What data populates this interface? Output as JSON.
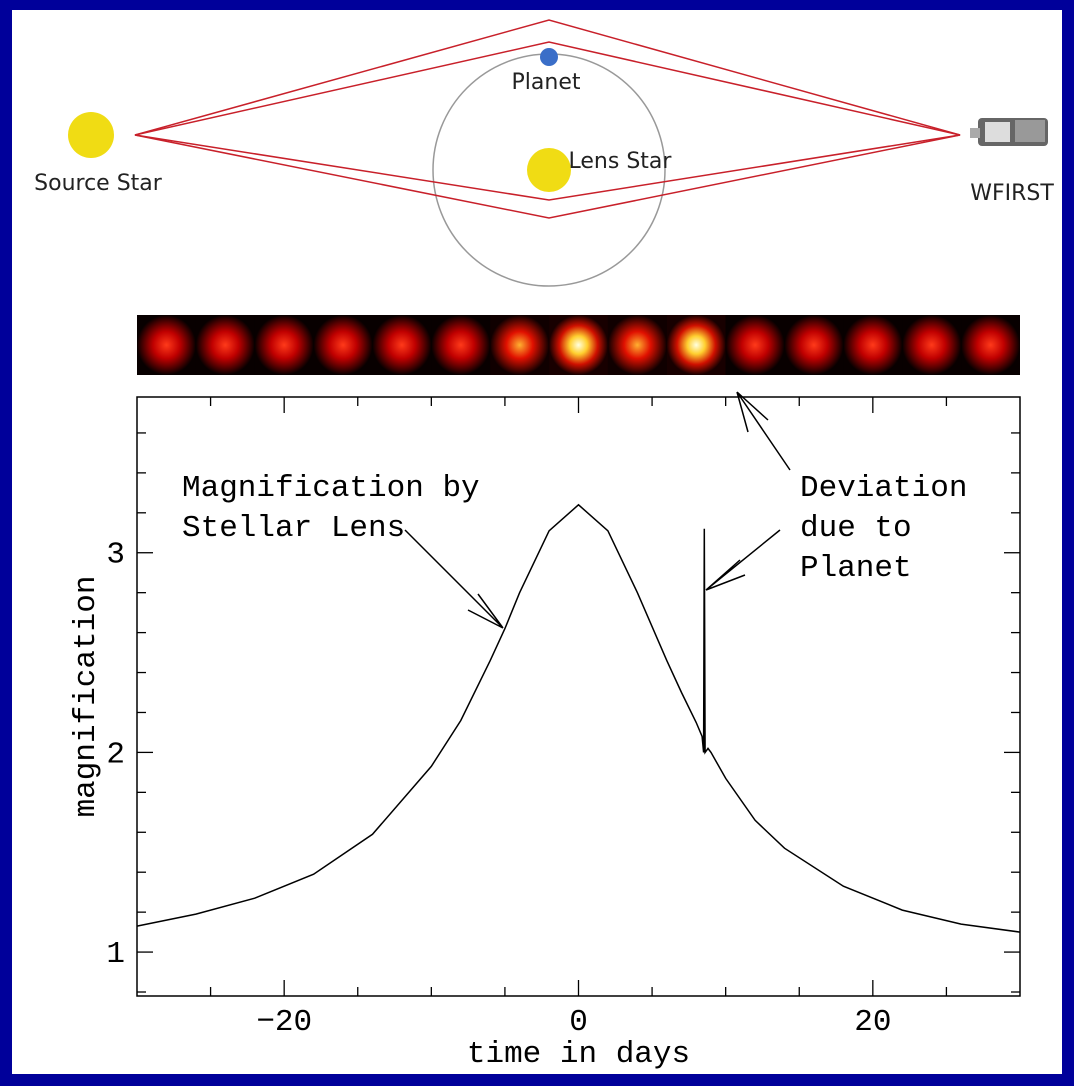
{
  "diagram": {
    "source_label": "Source Star",
    "lens_label": "Lens Star",
    "planet_label": "Planet",
    "telescope_label": "WFIRST"
  },
  "chart_data": {
    "type": "line",
    "xlabel": "time in days",
    "ylabel": "magnification",
    "annotations": [
      [
        "Magnification by",
        "Stellar Lens"
      ],
      [
        "Deviation",
        "due to",
        "Planet"
      ]
    ],
    "x": [
      -30,
      -26,
      -22,
      -18,
      -14,
      -10,
      -8,
      -6,
      -5,
      -4,
      -2,
      0,
      2,
      4,
      6,
      7,
      8,
      8.4,
      8.5,
      8.55,
      8.6,
      8.8,
      9,
      10,
      12,
      14,
      18,
      22,
      26,
      30
    ],
    "values": [
      1.13,
      1.19,
      1.27,
      1.39,
      1.59,
      1.93,
      2.16,
      2.46,
      2.62,
      2.8,
      3.11,
      3.24,
      3.11,
      2.8,
      2.46,
      2.3,
      2.15,
      2.08,
      2.0,
      3.12,
      2.0,
      2.02,
      2.0,
      1.87,
      1.66,
      1.52,
      1.33,
      1.21,
      1.14,
      1.1
    ],
    "color": "#000000",
    "xlim": [
      -30,
      30
    ],
    "xticks": [
      {
        "value": -20,
        "label": "−20"
      },
      0,
      20
    ],
    "xminorticks": [
      -25,
      -15,
      -10,
      -5,
      5,
      10,
      15,
      25
    ],
    "ylim": [
      0.78,
      3.78
    ],
    "yticks": [
      1,
      2,
      3
    ],
    "yminorticks": [
      0.8,
      1.2,
      1.4,
      1.6,
      1.8,
      2.2,
      2.4,
      2.6,
      2.8,
      3.2,
      3.4,
      3.6
    ]
  }
}
